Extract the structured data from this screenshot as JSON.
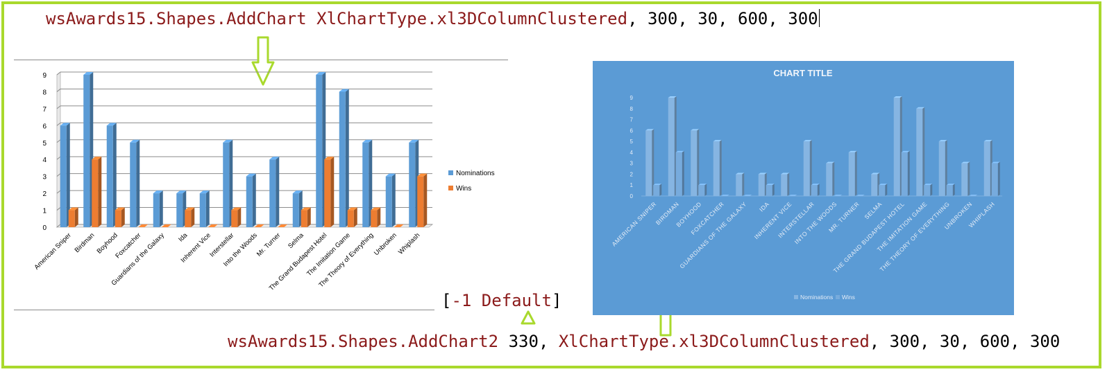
{
  "code": {
    "top": {
      "object": "wsAwards15.Shapes.AddChart",
      "type_arg": "XlChartType.xl3DColumnClustered",
      "args": ", 300, 30, 600, 300"
    },
    "bottom": {
      "object": "wsAwards15.Shapes.AddChart2",
      "style_arg": " 330, ",
      "type_arg": "XlChartType.xl3DColumnClustered",
      "args": ", 300, 30, 600, 300"
    },
    "default_note": {
      "open": "[",
      "text": "-1 Default",
      "close": "]"
    }
  },
  "colors": {
    "frame": "#a9d92d",
    "code_keyword": "#8b1a1a",
    "nominations": "#5b9bd5",
    "wins": "#ed7d31",
    "right_chart_bg": "#5b9bd5"
  },
  "chart_data": [
    {
      "type": "bar",
      "style": "3d-clustered-column",
      "categories": [
        "American Sniper",
        "Birdman",
        "Boyhood",
        "Foxcatcher",
        "Guardians of the Galaxy",
        "Ida",
        "Inherent Vice",
        "Interstellar",
        "Into the Woods",
        "Mr. Turner",
        "Selma",
        "The Grand Budapest Hotel",
        "The Imitation Game",
        "The Theory of Everything",
        "Unbroken",
        "Whiplash"
      ],
      "series": [
        {
          "name": "Nominations",
          "values": [
            6,
            9,
            6,
            5,
            2,
            2,
            2,
            5,
            3,
            4,
            2,
            9,
            8,
            5,
            3,
            5
          ]
        },
        {
          "name": "Wins",
          "values": [
            1,
            4,
            1,
            0,
            0,
            1,
            0,
            1,
            0,
            0,
            1,
            4,
            1,
            1,
            0,
            3
          ]
        }
      ],
      "yticks": [
        "0",
        "1",
        "2",
        "3",
        "4",
        "5",
        "6",
        "7",
        "8",
        "9"
      ],
      "ylim": [
        0,
        9
      ],
      "grid": true,
      "legend": "right"
    },
    {
      "type": "bar",
      "style": "3d-clustered-column",
      "title": "CHART TITLE",
      "categories": [
        "AMERICAN SNIPER",
        "BIRDMAN",
        "BOYHOOD",
        "FOXCATCHER",
        "GUARDIANS OF THE GALAXY",
        "IDA",
        "INHERENT VICE",
        "INTERSTELLAR",
        "INTO THE WOODS",
        "MR. TURNER",
        "SELMA",
        "THE GRAND BUDAPEST HOTEL",
        "THE IMITATION GAME",
        "THE THEORY OF EVERYTHING",
        "UNBROKEN",
        "WHIPLASH"
      ],
      "series": [
        {
          "name": "Nominations",
          "values": [
            6,
            9,
            6,
            5,
            2,
            2,
            2,
            5,
            3,
            4,
            2,
            9,
            8,
            5,
            3,
            5
          ]
        },
        {
          "name": "Wins",
          "values": [
            1,
            4,
            1,
            0,
            0,
            1,
            0,
            1,
            0,
            0,
            1,
            4,
            1,
            1,
            0,
            3
          ]
        }
      ],
      "yticks": [
        "0",
        "1",
        "2",
        "3",
        "4",
        "5",
        "6",
        "7",
        "8",
        "9"
      ],
      "ylim": [
        0,
        9
      ],
      "grid": false,
      "legend": "bottom"
    }
  ]
}
